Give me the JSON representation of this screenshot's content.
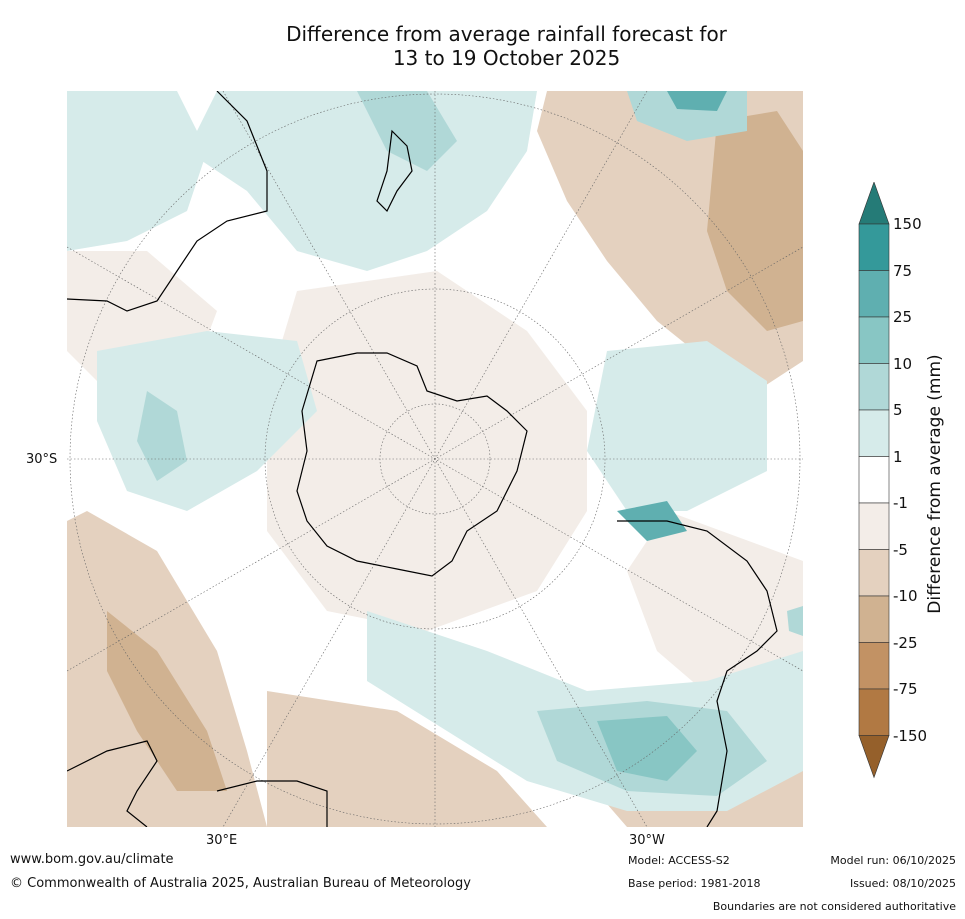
{
  "title_line1": "Difference from average rainfall forecast for",
  "title_line2": "13 to 19 October 2025",
  "lat_label": "30°S",
  "lon_labels": {
    "east": "30°E",
    "west": "30°W"
  },
  "colorbar": {
    "title": "Difference from average (mm)",
    "ticks": [
      "150",
      "75",
      "25",
      "10",
      "5",
      "1",
      "-1",
      "-5",
      "-10",
      "-25",
      "-75",
      "-150"
    ],
    "colors": [
      "#257b77",
      "#34999a",
      "#5fafb0",
      "#88c6c4",
      "#b0d8d7",
      "#d6ebea",
      "#ffffff",
      "#f3ede8",
      "#e4d1bf",
      "#d0b291",
      "#c29264",
      "#b17943",
      "#95602b"
    ]
  },
  "footer": {
    "website": "www.bom.gov.au/climate",
    "copyright": "© Commonwealth of Australia 2025, Australian Bureau of Meteorology",
    "model": "Model: ACCESS-S2",
    "base_period": "Base period: 1981-2018",
    "model_run": "Model run: 06/10/2025",
    "issued": "Issued: 08/10/2025",
    "disclaimer": "Boundaries are not considered authoritative"
  }
}
